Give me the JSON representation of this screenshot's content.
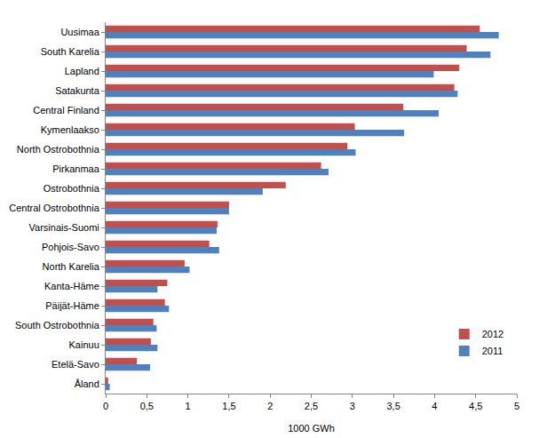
{
  "chart_data": {
    "type": "bar",
    "orientation": "horizontal",
    "x_label": "1000 GWh",
    "categories": [
      "Uusimaa",
      "South Karelia",
      "Lapland",
      "Satakunta",
      "Central Finland",
      "Kymenlaakso",
      "North Ostrobothnia",
      "Pirkanmaa",
      "Ostrobothnia",
      "Central Ostrobothnia",
      "Varsinais-Suomi",
      "Pohjois-Savo",
      "North Karelia",
      "Kanta-Häme",
      "Päijät-Häme",
      "South Ostrobothnia",
      "Kainuu",
      "Etelä-Savo",
      "Åland"
    ],
    "series": [
      {
        "name": "2012",
        "color": "#c0504d",
        "values": [
          4.55,
          4.39,
          4.3,
          4.24,
          3.62,
          3.03,
          2.94,
          2.62,
          2.19,
          1.5,
          1.36,
          1.26,
          0.96,
          0.75,
          0.72,
          0.58,
          0.55,
          0.38,
          0.03
        ]
      },
      {
        "name": "2011",
        "color": "#4f81bd",
        "values": [
          4.78,
          4.68,
          3.99,
          4.28,
          4.05,
          3.63,
          3.04,
          2.71,
          1.91,
          1.5,
          1.35,
          1.38,
          1.02,
          0.63,
          0.77,
          0.62,
          0.63,
          0.54,
          0.05
        ]
      }
    ],
    "xlim": [
      0,
      5
    ],
    "xticks": [
      0,
      {
        "value": 0.5,
        "label": "0,5"
      },
      1,
      {
        "value": 1.5,
        "label": "1,5"
      },
      2,
      {
        "value": 2.5,
        "label": "2,5"
      },
      3,
      {
        "value": 3.5,
        "label": "3,5"
      },
      4,
      {
        "value": 4.5,
        "label": "4,5"
      },
      5
    ],
    "grid": false,
    "legend": "lower right"
  }
}
